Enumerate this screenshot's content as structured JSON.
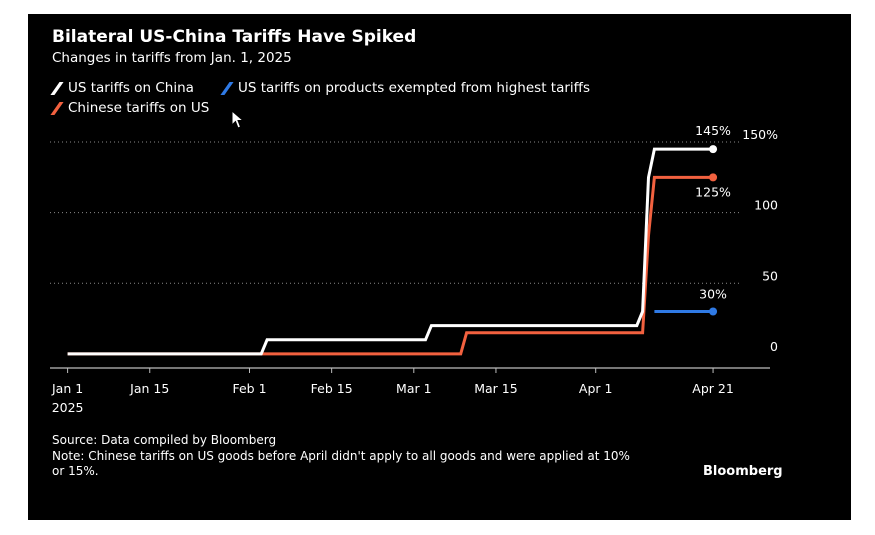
{
  "chart_data": {
    "type": "line",
    "title": "Bilateral US-China Tariffs Have Spiked",
    "subtitle": "Changes in tariffs from Jan. 1, 2025",
    "x_tick_labels": [
      {
        "date": "2025-01-01",
        "label": "Jan 1",
        "sublabel": "2025"
      },
      {
        "date": "2025-01-15",
        "label": "Jan 15"
      },
      {
        "date": "2025-02-01",
        "label": "Feb 1"
      },
      {
        "date": "2025-02-15",
        "label": "Feb 15"
      },
      {
        "date": "2025-03-01",
        "label": "Mar 1"
      },
      {
        "date": "2025-03-15",
        "label": "Mar 15"
      },
      {
        "date": "2025-04-01",
        "label": "Apr 1"
      },
      {
        "date": "2025-04-21",
        "label": "Apr 21"
      }
    ],
    "y_ticks": [
      0,
      50,
      100,
      150
    ],
    "y_tick_labels": [
      "0",
      "50",
      "100",
      "150%"
    ],
    "ylim": [
      -10,
      155
    ],
    "xlim": [
      "2024-12-29",
      "2025-04-29"
    ],
    "grid": true,
    "legend_position": "top-left",
    "series": [
      {
        "name": "US tariffs on China",
        "color": "#ffffff",
        "end_label": "145%",
        "points": [
          [
            "2025-01-01",
            0
          ],
          [
            "2025-02-03",
            0
          ],
          [
            "2025-02-04",
            10
          ],
          [
            "2025-03-03",
            10
          ],
          [
            "2025-03-04",
            20
          ],
          [
            "2025-04-08",
            20
          ],
          [
            "2025-04-09",
            30
          ],
          [
            "2025-04-10",
            125
          ],
          [
            "2025-04-11",
            145
          ],
          [
            "2025-04-21",
            145
          ]
        ]
      },
      {
        "name": "US tariffs on products exempted from highest tariffs",
        "color": "#2f7ae5",
        "end_label": "30%",
        "points": [
          [
            "2025-04-11",
            30
          ],
          [
            "2025-04-21",
            30
          ]
        ]
      },
      {
        "name": "Chinese tariffs on US",
        "color": "#f2613f",
        "end_label": "125%",
        "points": [
          [
            "2025-01-01",
            0
          ],
          [
            "2025-03-09",
            0
          ],
          [
            "2025-03-10",
            15
          ],
          [
            "2025-04-09",
            15
          ],
          [
            "2025-04-10",
            84
          ],
          [
            "2025-04-11",
            125
          ],
          [
            "2025-04-21",
            125
          ]
        ]
      }
    ]
  },
  "source": "Source: Data compiled by Bloomberg",
  "note": "Note: Chinese tariffs on US goods before April didn't apply to all goods and were applied at 10% or 15%.",
  "brand": "Bloomberg"
}
